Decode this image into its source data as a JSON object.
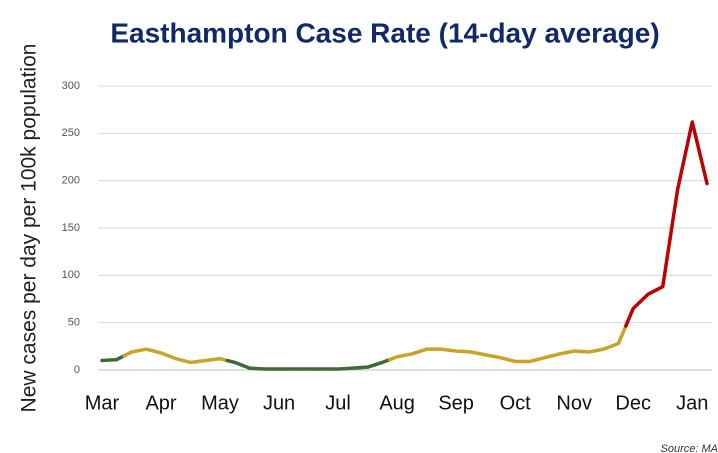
{
  "chart_data": {
    "type": "line",
    "title": "Easthampton Case Rate (14-day average)",
    "y_label": "New cases per day per 100k population",
    "source": "Source: MA",
    "categories": [
      "Mar",
      null,
      null,
      null,
      "Apr",
      null,
      null,
      null,
      "May",
      null,
      null,
      null,
      "Jun",
      null,
      null,
      null,
      "Jul",
      null,
      null,
      null,
      "Aug",
      null,
      null,
      null,
      "Sep",
      null,
      null,
      null,
      "Oct",
      null,
      null,
      null,
      "Nov",
      null,
      null,
      null,
      "Dec",
      null,
      null,
      null,
      "Jan",
      null
    ],
    "values": [
      10,
      11,
      19,
      22,
      18,
      12,
      8,
      10,
      12,
      8,
      2,
      1,
      1,
      1,
      1,
      1,
      1,
      2,
      3,
      8,
      14,
      17,
      22,
      22,
      20,
      19,
      16,
      13,
      9,
      9,
      13,
      17,
      20,
      19,
      22,
      28,
      65,
      80,
      88,
      190,
      262,
      197
    ],
    "colors": [
      "#3d6b34",
      "#3d6b34",
      "#c9a227",
      "#c9a227",
      "#c9a227",
      "#c9a227",
      "#c9a227",
      "#c9a227",
      "#c9a227",
      "#3d6b34",
      "#3d6b34",
      "#3d6b34",
      "#3d6b34",
      "#3d6b34",
      "#3d6b34",
      "#3d6b34",
      "#3d6b34",
      "#3d6b34",
      "#3d6b34",
      "#3d6b34",
      "#c9a227",
      "#c9a227",
      "#c9a227",
      "#c9a227",
      "#c9a227",
      "#c9a227",
      "#c9a227",
      "#c9a227",
      "#c9a227",
      "#c9a227",
      "#c9a227",
      "#c9a227",
      "#c9a227",
      "#c9a227",
      "#c9a227",
      "#c9a227",
      "#c00000",
      "#c00000",
      "#c00000",
      "#c00000",
      "#c00000",
      "#c00000"
    ],
    "ylim": [
      0,
      300
    ],
    "yticks": [
      0,
      50,
      100,
      150,
      200,
      250,
      300
    ],
    "grid": true
  }
}
